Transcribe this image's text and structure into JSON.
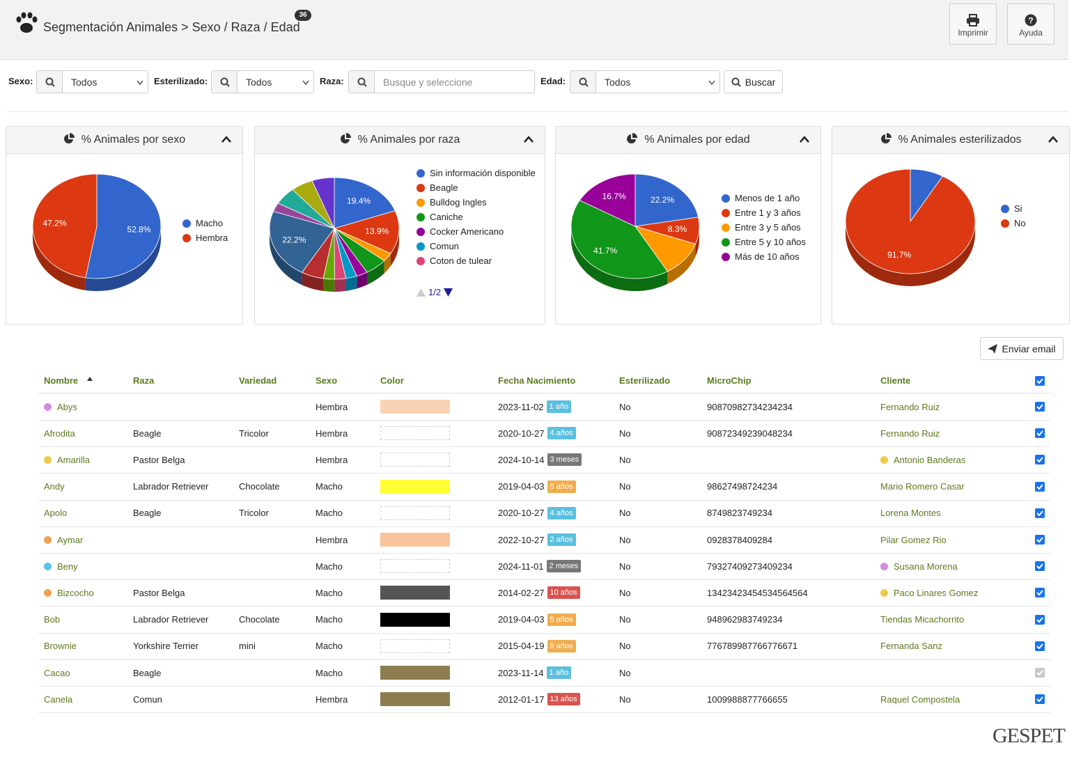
{
  "header": {
    "title": "Segmentación Animales > Sexo / Raza / Edad",
    "badge": "36",
    "buttons": [
      "Imprimir",
      "Ayuda"
    ]
  },
  "filters": [
    {
      "label": "Sexo:",
      "value": "Todos"
    },
    {
      "label": "Esterilizado:",
      "value": "Todos"
    },
    {
      "label": "Raza:",
      "placeholder": "Busque y seleccione"
    },
    {
      "label": "Edad:",
      "value": "Todos"
    }
  ],
  "search_button": "Buscar",
  "charts": [
    {
      "type": "pie",
      "title": "% Animales por sexo",
      "categories": [
        "Macho",
        "Hembra"
      ],
      "values": [
        52.8,
        47.2
      ],
      "value_labels": [
        "52.8%",
        "47.2%"
      ],
      "colors": [
        "#3366cc",
        "#dc3912"
      ]
    },
    {
      "type": "pie",
      "title": "% Animales por raza",
      "categories": [
        "Sin información disponible",
        "Beagle",
        "Bulldog Ingles",
        "Caniche",
        "Cocker Americano",
        "Comun",
        "Coton de tulear",
        null,
        null,
        null,
        null,
        null,
        null,
        null
      ],
      "values": [
        19.4,
        13.9,
        2.8,
        5.6,
        2.8,
        2.8,
        2.8,
        2.8,
        5.6,
        22.2,
        2.8,
        5.6,
        5.6,
        5.6
      ],
      "value_labels": [
        "19.4%",
        "13.9%",
        null,
        null,
        null,
        null,
        null,
        null,
        null,
        "22.2%",
        null,
        null,
        null,
        null
      ],
      "colors": [
        "#3366cc",
        "#dc3912",
        "#ff9900",
        "#109618",
        "#990099",
        "#0099c6",
        "#dd4477",
        "#66aa00",
        "#b82e2e",
        "#316395",
        "#994499",
        "#22aa99",
        "#aaaa11",
        "#6633cc"
      ],
      "legend_page": "1/2"
    },
    {
      "type": "pie",
      "title": "% Animales por edad",
      "categories": [
        "Menos de 1 año",
        "Entre 1 y 3 años",
        "Entre 3 y 5 años",
        "Entre 5 y 10 años",
        "Más de 10 años"
      ],
      "values": [
        22.2,
        8.3,
        11.1,
        41.7,
        16.7
      ],
      "value_labels": [
        "22.2%",
        "8.3%",
        null,
        "41.7%",
        "16.7%"
      ],
      "colors": [
        "#3366cc",
        "#dc3912",
        "#ff9900",
        "#109618",
        "#990099"
      ]
    },
    {
      "type": "pie",
      "title": "% Animales esterilizados",
      "categories": [
        "Si",
        "No"
      ],
      "values": [
        8.3,
        91.7
      ],
      "value_labels": [
        null,
        "91.7%"
      ],
      "colors": [
        "#3366cc",
        "#dc3912"
      ]
    }
  ],
  "email_button": "Enviar email",
  "table": {
    "columns": [
      "Nombre",
      "Raza",
      "Variedad",
      "Sexo",
      "Color",
      "Fecha Nacimiento",
      "Esterilizado",
      "MicroChip",
      "Cliente"
    ],
    "header_checked": true,
    "rows": [
      {
        "nombre": "Abys",
        "dot": "#d48be0",
        "sexo": "Hembra",
        "color": "#f9d3b4",
        "fecha": "2023-11-02",
        "edad": "1 año",
        "edad_color": "#5bc0de",
        "esterilizado": "No",
        "microchip": "90870982734234234",
        "cliente": "Fernando Ruiz",
        "checked": true
      },
      {
        "nombre": "Afrodita",
        "raza": "Beagle",
        "variedad": "Tricolor",
        "sexo": "Hembra",
        "fecha": "2020-10-27",
        "edad": "4 años",
        "edad_color": "#5bc0de",
        "esterilizado": "No",
        "microchip": "90872349239048234",
        "cliente": "Fernando Ruiz",
        "checked": true
      },
      {
        "nombre": "Amarilla",
        "dot": "#f0c94a",
        "raza": "Pastor Belga",
        "sexo": "Hembra",
        "fecha": "2024-10-14",
        "edad": "3 meses",
        "edad_color": "#777777",
        "esterilizado": "No",
        "cliente": "Antonio Banderas",
        "cliente_dot": "#f0c94a",
        "checked": true
      },
      {
        "nombre": "Andy",
        "raza": "Labrador Retriever",
        "variedad": "Chocolate",
        "sexo": "Macho",
        "color": "#ffff33",
        "fecha": "2019-04-03",
        "edad": "5 años",
        "edad_color": "#f0ad4e",
        "esterilizado": "No",
        "microchip": "98627498724234",
        "cliente": "Mario Romero Casar",
        "checked": true
      },
      {
        "nombre": "Apolo",
        "raza": "Beagle",
        "variedad": "Tricolor",
        "sexo": "Macho",
        "fecha": "2020-10-27",
        "edad": "4 años",
        "edad_color": "#5bc0de",
        "esterilizado": "No",
        "microchip": "8749823749234",
        "cliente": "Lorena Montes",
        "checked": true
      },
      {
        "nombre": "Aymar",
        "dot": "#f0a050",
        "sexo": "Hembra",
        "color": "#f9c49a",
        "fecha": "2022-10-27",
        "edad": "2 años",
        "edad_color": "#5bc0de",
        "esterilizado": "No",
        "microchip": "0928378409284",
        "cliente": "Pilar Gomez Rio",
        "checked": true
      },
      {
        "nombre": "Beny",
        "dot": "#5bc0ee",
        "sexo": "Macho",
        "fecha": "2024-11-01",
        "edad": "2 meses",
        "edad_color": "#777777",
        "esterilizado": "No",
        "microchip": "79327409273409234",
        "cliente": "Susana Morena",
        "cliente_dot": "#d48be0",
        "checked": true
      },
      {
        "nombre": "Bizcocho",
        "dot": "#f0a050",
        "raza": "Pastor Belga",
        "sexo": "Macho",
        "color": "#555555",
        "fecha": "2014-02-27",
        "edad": "10 años",
        "edad_color": "#d9534f",
        "esterilizado": "No",
        "microchip": "13423423454534564564",
        "cliente": "Paco Linares Gomez",
        "cliente_dot": "#f0c94a",
        "checked": true
      },
      {
        "nombre": "Bob",
        "raza": "Labrador Retriever",
        "variedad": "Chocolate",
        "sexo": "Macho",
        "color": "#000000",
        "fecha": "2019-04-03",
        "edad": "5 años",
        "edad_color": "#f0ad4e",
        "esterilizado": "No",
        "microchip": "948962983749234",
        "cliente": "Tiendas Micachorrito",
        "checked": true
      },
      {
        "nombre": "Brownie",
        "raza": "Yorkshire Terrier",
        "variedad": "mini",
        "sexo": "Macho",
        "fecha": "2015-04-19",
        "edad": "9 años",
        "edad_color": "#f0ad4e",
        "esterilizado": "No",
        "microchip": "776789987766776671",
        "cliente": "Fernanda Sanz",
        "checked": true
      },
      {
        "nombre": "Cacao",
        "raza": "Beagle",
        "sexo": "Macho",
        "color": "#8b7d50",
        "fecha": "2023-11-14",
        "edad": "1 año",
        "edad_color": "#5bc0de",
        "esterilizado": "No",
        "checked": true,
        "disabled": true
      },
      {
        "nombre": "Canela",
        "raza": "Comun",
        "sexo": "Hembra",
        "color": "#8b7d50",
        "fecha": "2012-01-17",
        "edad": "13 años",
        "edad_color": "#d9534f",
        "esterilizado": "No",
        "microchip": "1009988877766655",
        "cliente": "Raquel Compostela",
        "checked": true
      }
    ]
  },
  "footer_logo": "GESPET"
}
